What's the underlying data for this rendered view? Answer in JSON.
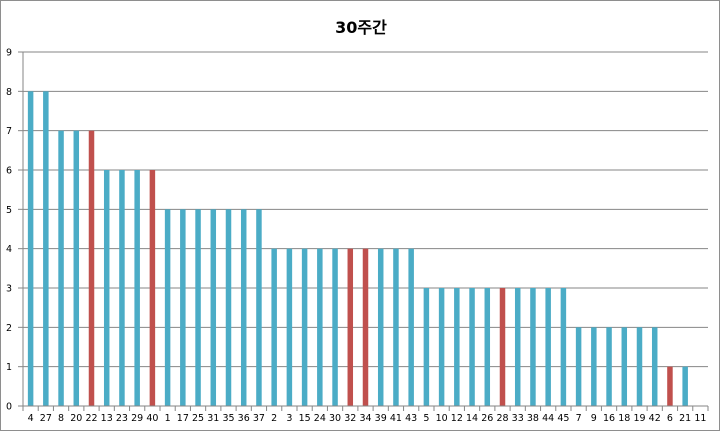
{
  "chart_data": {
    "type": "bar",
    "title": "30주간",
    "xlabel": "",
    "ylabel": "",
    "ylim": [
      0,
      9
    ],
    "yticks": [
      0,
      1,
      2,
      3,
      4,
      5,
      6,
      7,
      8,
      9
    ],
    "grid": true,
    "legend": "none",
    "colors": {
      "default": "#4bacc6",
      "highlight": "#c0504d",
      "grid": "#868686",
      "axis": "#868686"
    },
    "categories": [
      "4",
      "27",
      "8",
      "20",
      "22",
      "13",
      "23",
      "29",
      "40",
      "1",
      "17",
      "25",
      "31",
      "35",
      "36",
      "37",
      "2",
      "3",
      "15",
      "24",
      "30",
      "32",
      "34",
      "39",
      "41",
      "43",
      "5",
      "10",
      "12",
      "14",
      "26",
      "28",
      "33",
      "38",
      "44",
      "45",
      "7",
      "9",
      "16",
      "18",
      "19",
      "42",
      "6",
      "21",
      "11"
    ],
    "values": [
      8,
      8,
      7,
      7,
      7,
      6,
      6,
      6,
      6,
      5,
      5,
      5,
      5,
      5,
      5,
      5,
      4,
      4,
      4,
      4,
      4,
      4,
      4,
      4,
      4,
      4,
      3,
      3,
      3,
      3,
      3,
      3,
      3,
      3,
      3,
      3,
      2,
      2,
      2,
      2,
      2,
      2,
      1,
      1,
      0
    ],
    "highlighted": [
      "22",
      "40",
      "32",
      "34",
      "28",
      "6"
    ]
  }
}
